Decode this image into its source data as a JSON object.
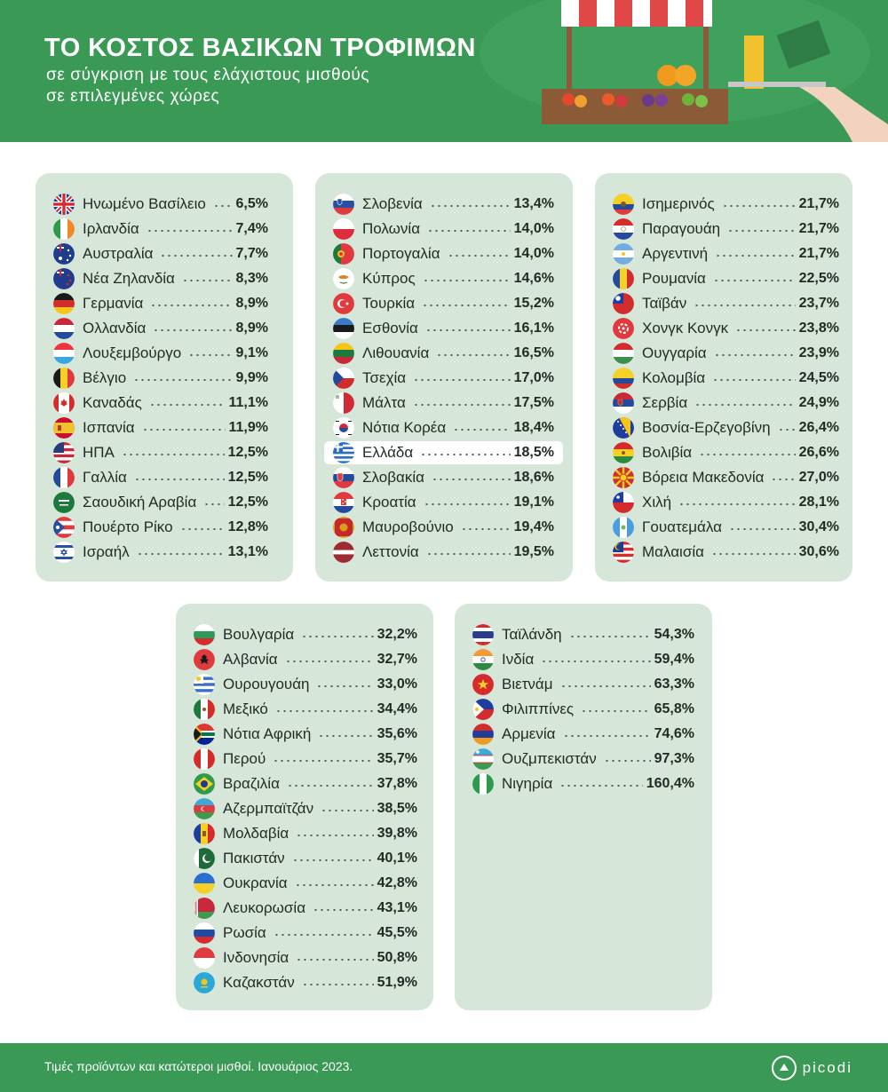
{
  "header": {
    "title": "ΤΟ ΚΟΣΤΟΣ ΒΑΣΙΚΩΝ ΤΡΟΦΙΜΩΝ",
    "subtitle_line1": "σε σύγκριση με τους ελάχιστους μισθούς",
    "subtitle_line2": "σε επιλεγμένες χώρες"
  },
  "footer": {
    "note": "Τιμές προϊόντων και κατώτεροι μισθοί. Ιανουάριος 2023.",
    "brand": "picodi"
  },
  "colors": {
    "header_green": "#3a9a55",
    "panel_bg": "#d6e7da",
    "highlight_bg": "#ffffff"
  },
  "chart_data": {
    "type": "table",
    "title": "ΤΟ ΚΟΣΤΟΣ ΒΑΣΙΚΩΝ ΤΡΟΦΙΜΩΝ",
    "subtitle": "σε σύγκριση με τους ελάχιστους μισθούς σε επιλεγμένες χώρες",
    "highlighted": "Ελλάδα",
    "columns": [
      {
        "rows": [
          {
            "name": "Ηνωμένο Βασίλειο",
            "value": "6,5%",
            "pct": 6.5,
            "flag": "uk"
          },
          {
            "name": "Ιρλανδία",
            "value": "7,4%",
            "pct": 7.4,
            "flag": "ireland"
          },
          {
            "name": "Αυστραλία",
            "value": "7,7%",
            "pct": 7.7,
            "flag": "australia"
          },
          {
            "name": "Νέα Ζηλανδία",
            "value": "8,3%",
            "pct": 8.3,
            "flag": "newzealand"
          },
          {
            "name": "Γερμανία",
            "value": "8,9%",
            "pct": 8.9,
            "flag": "germany"
          },
          {
            "name": "Ολλανδία",
            "value": "8,9%",
            "pct": 8.9,
            "flag": "netherlands"
          },
          {
            "name": "Λουξεμβούργο",
            "value": "9,1%",
            "pct": 9.1,
            "flag": "luxembourg"
          },
          {
            "name": "Βέλγιο",
            "value": "9,9%",
            "pct": 9.9,
            "flag": "belgium"
          },
          {
            "name": "Καναδάς",
            "value": "11,1%",
            "pct": 11.1,
            "flag": "canada"
          },
          {
            "name": "Ισπανία",
            "value": "11,9%",
            "pct": 11.9,
            "flag": "spain"
          },
          {
            "name": "ΗΠΑ",
            "value": "12,5%",
            "pct": 12.5,
            "flag": "usa"
          },
          {
            "name": "Γαλλία",
            "value": "12,5%",
            "pct": 12.5,
            "flag": "france"
          },
          {
            "name": "Σαουδική Αραβία",
            "value": "12,5%",
            "pct": 12.5,
            "flag": "saudi"
          },
          {
            "name": "Πουέρτο Ρίκο",
            "value": "12,8%",
            "pct": 12.8,
            "flag": "puertorico"
          },
          {
            "name": "Ισραήλ",
            "value": "13,1%",
            "pct": 13.1,
            "flag": "israel"
          }
        ]
      },
      {
        "rows": [
          {
            "name": "Σλοβενία",
            "value": "13,4%",
            "pct": 13.4,
            "flag": "slovenia"
          },
          {
            "name": "Πολωνία",
            "value": "14,0%",
            "pct": 14.0,
            "flag": "poland"
          },
          {
            "name": "Πορτογαλία",
            "value": "14,0%",
            "pct": 14.0,
            "flag": "portugal"
          },
          {
            "name": "Κύπρος",
            "value": "14,6%",
            "pct": 14.6,
            "flag": "cyprus"
          },
          {
            "name": "Τουρκία",
            "value": "15,2%",
            "pct": 15.2,
            "flag": "turkey"
          },
          {
            "name": "Εσθονία",
            "value": "16,1%",
            "pct": 16.1,
            "flag": "estonia"
          },
          {
            "name": "Λιθουανία",
            "value": "16,5%",
            "pct": 16.5,
            "flag": "lithuania"
          },
          {
            "name": "Τσεχία",
            "value": "17,0%",
            "pct": 17.0,
            "flag": "czech"
          },
          {
            "name": "Μάλτα",
            "value": "17,5%",
            "pct": 17.5,
            "flag": "malta"
          },
          {
            "name": "Νότια Κορέα",
            "value": "18,4%",
            "pct": 18.4,
            "flag": "southkorea"
          },
          {
            "name": "Ελλάδα",
            "value": "18,5%",
            "pct": 18.5,
            "flag": "greece",
            "highlight": true
          },
          {
            "name": "Σλοβακία",
            "value": "18,6%",
            "pct": 18.6,
            "flag": "slovakia"
          },
          {
            "name": "Κροατία",
            "value": "19,1%",
            "pct": 19.1,
            "flag": "croatia"
          },
          {
            "name": "Μαυροβούνιο",
            "value": "19,4%",
            "pct": 19.4,
            "flag": "montenegro"
          },
          {
            "name": "Λεττονία",
            "value": "19,5%",
            "pct": 19.5,
            "flag": "latvia"
          }
        ]
      },
      {
        "rows": [
          {
            "name": "Ισημερινός",
            "value": "21,7%",
            "pct": 21.7,
            "flag": "ecuador"
          },
          {
            "name": "Παραγουάη",
            "value": "21,7%",
            "pct": 21.7,
            "flag": "paraguay"
          },
          {
            "name": "Αργεντινή",
            "value": "21,7%",
            "pct": 21.7,
            "flag": "argentina"
          },
          {
            "name": "Ρουμανία",
            "value": "22,5%",
            "pct": 22.5,
            "flag": "romania"
          },
          {
            "name": "Ταϊβάν",
            "value": "23,7%",
            "pct": 23.7,
            "flag": "taiwan"
          },
          {
            "name": "Χονγκ Κονγκ",
            "value": "23,8%",
            "pct": 23.8,
            "flag": "hongkong"
          },
          {
            "name": "Ουγγαρία",
            "value": "23,9%",
            "pct": 23.9,
            "flag": "hungary"
          },
          {
            "name": "Κολομβία",
            "value": "24,5%",
            "pct": 24.5,
            "flag": "colombia"
          },
          {
            "name": "Σερβία",
            "value": "24,9%",
            "pct": 24.9,
            "flag": "serbia"
          },
          {
            "name": "Βοσνία-Ερζεγοβίνη",
            "value": "26,4%",
            "pct": 26.4,
            "flag": "bosnia"
          },
          {
            "name": "Βολιβία",
            "value": "26,6%",
            "pct": 26.6,
            "flag": "bolivia"
          },
          {
            "name": "Βόρεια Μακεδονία",
            "value": "27,0%",
            "pct": 27.0,
            "flag": "northmacedonia"
          },
          {
            "name": "Χιλή",
            "value": "28,1%",
            "pct": 28.1,
            "flag": "chile"
          },
          {
            "name": "Γουατεμάλα",
            "value": "30,4%",
            "pct": 30.4,
            "flag": "guatemala"
          },
          {
            "name": "Μαλαισία",
            "value": "30,6%",
            "pct": 30.6,
            "flag": "malaysia"
          }
        ]
      },
      {
        "rows": [
          {
            "name": "Βουλγαρία",
            "value": "32,2%",
            "pct": 32.2,
            "flag": "bulgaria"
          },
          {
            "name": "Αλβανία",
            "value": "32,7%",
            "pct": 32.7,
            "flag": "albania"
          },
          {
            "name": "Ουρουγουάη",
            "value": "33,0%",
            "pct": 33.0,
            "flag": "uruguay"
          },
          {
            "name": "Μεξικό",
            "value": "34,4%",
            "pct": 34.4,
            "flag": "mexico"
          },
          {
            "name": "Νότια Αφρική",
            "value": "35,6%",
            "pct": 35.6,
            "flag": "southafrica"
          },
          {
            "name": "Περού",
            "value": "35,7%",
            "pct": 35.7,
            "flag": "peru"
          },
          {
            "name": "Βραζιλία",
            "value": "37,8%",
            "pct": 37.8,
            "flag": "brazil"
          },
          {
            "name": "Αζερμπαϊτζάν",
            "value": "38,5%",
            "pct": 38.5,
            "flag": "azerbaijan"
          },
          {
            "name": "Μολδαβία",
            "value": "39,8%",
            "pct": 39.8,
            "flag": "moldova"
          },
          {
            "name": "Πακιστάν",
            "value": "40,1%",
            "pct": 40.1,
            "flag": "pakistan"
          },
          {
            "name": "Ουκρανία",
            "value": "42,8%",
            "pct": 42.8,
            "flag": "ukraine"
          },
          {
            "name": "Λευκορωσία",
            "value": "43,1%",
            "pct": 43.1,
            "flag": "belarus"
          },
          {
            "name": "Ρωσία",
            "value": "45,5%",
            "pct": 45.5,
            "flag": "russia"
          },
          {
            "name": "Ινδονησία",
            "value": "50,8%",
            "pct": 50.8,
            "flag": "indonesia"
          },
          {
            "name": "Καζακστάν",
            "value": "51,9%",
            "pct": 51.9,
            "flag": "kazakhstan"
          }
        ]
      },
      {
        "rows": [
          {
            "name": "Ταϊλάνδη",
            "value": "54,3%",
            "pct": 54.3,
            "flag": "thailand"
          },
          {
            "name": "Ινδία",
            "value": "59,4%",
            "pct": 59.4,
            "flag": "india"
          },
          {
            "name": "Βιετνάμ",
            "value": "63,3%",
            "pct": 63.3,
            "flag": "vietnam"
          },
          {
            "name": "Φιλιππίνες",
            "value": "65,8%",
            "pct": 65.8,
            "flag": "philippines"
          },
          {
            "name": "Αρμενία",
            "value": "74,6%",
            "pct": 74.6,
            "flag": "armenia"
          },
          {
            "name": "Ουζμπεκιστάν",
            "value": "97,3%",
            "pct": 97.3,
            "flag": "uzbekistan"
          },
          {
            "name": "Νιγηρία",
            "value": "160,4%",
            "pct": 160.4,
            "flag": "nigeria"
          }
        ]
      }
    ]
  }
}
